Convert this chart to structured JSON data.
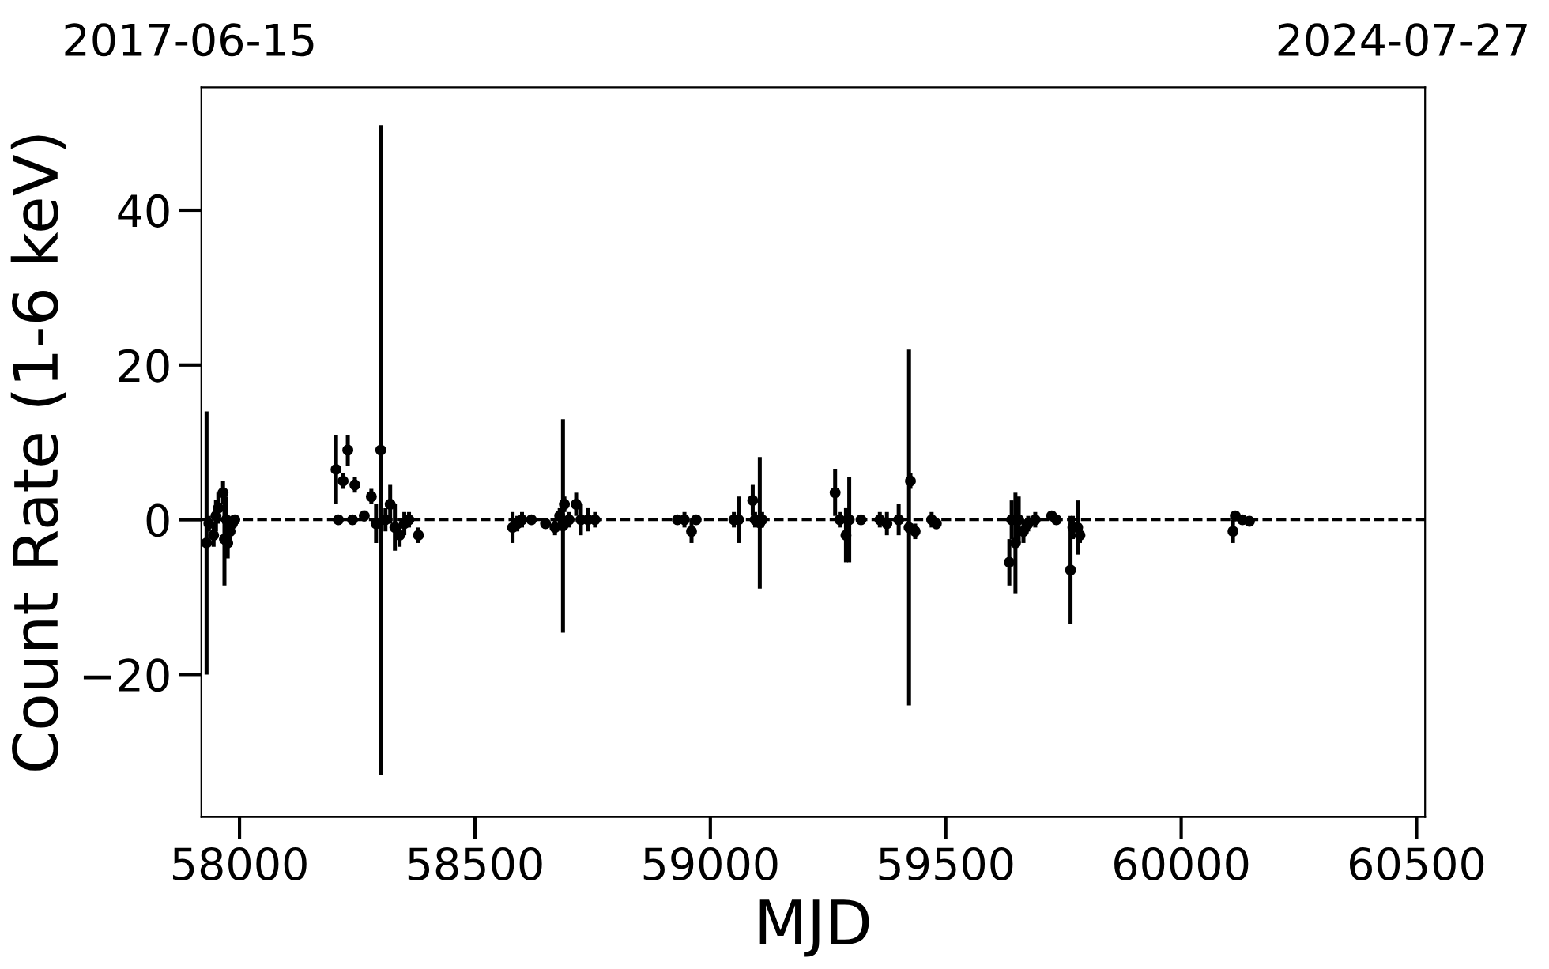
{
  "chart_data": {
    "type": "scatter",
    "xlabel": "MJD",
    "ylabel": "Count Rate (1-6 keV)",
    "xlim": [
      57919,
      60518
    ],
    "xticks": [
      58000,
      58500,
      59000,
      59500,
      60000,
      60500
    ],
    "ylim": [
      -38.4,
      55.9
    ],
    "yticks": [
      {
        "value": -20,
        "label": "−20"
      },
      0,
      20,
      40
    ],
    "annotations": [
      "2017-06-15",
      "2024-07-27"
    ],
    "grid": false,
    "marker": "circle",
    "ref_lines": [
      {
        "axis": "y",
        "value": 0,
        "color": "#000000",
        "line_style": "dashed"
      }
    ],
    "series": [
      {
        "color": "#000000",
        "x": [
          57930,
          57935,
          57945,
          57950,
          57955,
          57965,
          57968,
          57972,
          57975,
          57980,
          57985,
          57990,
          58205,
          58210,
          58220,
          58230,
          58240,
          58245,
          58265,
          58280,
          58290,
          58300,
          58310,
          58320,
          58330,
          58340,
          58350,
          58360,
          58380,
          58580,
          58590,
          58600,
          58620,
          58650,
          58670,
          58680,
          58687,
          58690,
          58700,
          58715,
          58725,
          58740,
          58755,
          58930,
          58945,
          58960,
          58970,
          59050,
          59060,
          59090,
          59095,
          59105,
          59110,
          59265,
          59275,
          59288,
          59295,
          59320,
          59360,
          59375,
          59400,
          59422,
          59425,
          59435,
          59470,
          59480,
          59635,
          59640,
          59648,
          59655,
          59665,
          59675,
          59690,
          59725,
          59735,
          59765,
          59770,
          59780,
          59785,
          60110,
          60115,
          60130,
          60145
        ],
        "values": [
          -3,
          -0.5,
          -2,
          0.5,
          1.5,
          3.5,
          -2.5,
          0,
          -3,
          -1.5,
          -0.5,
          0,
          6.5,
          0,
          5,
          9,
          0,
          4.5,
          0.5,
          3,
          -0.5,
          9,
          0,
          2,
          -1,
          -2,
          -0.5,
          0,
          -2,
          -1,
          -0.5,
          0,
          0,
          -0.5,
          -1,
          0.5,
          -0.8,
          2,
          0,
          2,
          0,
          0,
          0,
          0,
          0,
          -1.5,
          0,
          0,
          0,
          2.5,
          0,
          -0.4,
          0,
          3.5,
          0,
          -2,
          0,
          0,
          0,
          -0.5,
          0,
          -1,
          5,
          -1.5,
          0,
          -0.5,
          -5.5,
          0,
          -3,
          0,
          -1.5,
          -0.5,
          0,
          0.5,
          0,
          -6.5,
          -1,
          -1,
          -2,
          -1.5,
          0.5,
          0,
          -0.2
        ],
        "errors": [
          17,
          1,
          1.5,
          2,
          2,
          1.5,
          6,
          3,
          2,
          1.5,
          1,
          0.5,
          4.5,
          0.5,
          1,
          2,
          0.5,
          1,
          0.7,
          1,
          2.5,
          42,
          1.5,
          2.5,
          3,
          1.5,
          1.5,
          1,
          1,
          2,
          1,
          1,
          0.5,
          0.5,
          1,
          1,
          13.8,
          1,
          1,
          1.5,
          2,
          1.5,
          1,
          0.5,
          1,
          1.5,
          0.5,
          1,
          3,
          2,
          1,
          8.5,
          1,
          3,
          1,
          3.5,
          5.5,
          0.5,
          1,
          1.5,
          2,
          23,
          1,
          1,
          1,
          0.7,
          3,
          2.5,
          6.5,
          3,
          1.5,
          1,
          1,
          0.5,
          0.5,
          7,
          1.5,
          3.5,
          1,
          1.5,
          0.5,
          0.5,
          0.5
        ]
      }
    ]
  }
}
